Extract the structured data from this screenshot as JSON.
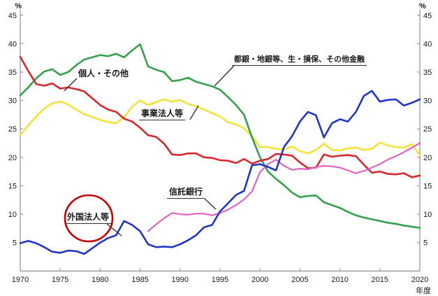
{
  "chart_data": {
    "type": "line",
    "title": "",
    "x_axis_unit_label": "年度",
    "y_axis_unit_label": "%",
    "ylim": [
      0,
      45
    ],
    "grid": false,
    "x_ticks": [
      1970,
      1975,
      1980,
      1985,
      1990,
      1995,
      2000,
      2005,
      2010,
      2015,
      2020
    ],
    "y_ticks": [
      5,
      10,
      15,
      20,
      25,
      30,
      35,
      40,
      45
    ],
    "years": [
      1970,
      1971,
      1972,
      1973,
      1974,
      1975,
      1976,
      1977,
      1978,
      1979,
      1980,
      1981,
      1982,
      1983,
      1984,
      1985,
      1986,
      1987,
      1988,
      1989,
      1990,
      1991,
      1992,
      1993,
      1994,
      1995,
      1996,
      1997,
      1998,
      1999,
      2000,
      2001,
      2002,
      2003,
      2004,
      2005,
      2006,
      2007,
      2008,
      2009,
      2010,
      2011,
      2012,
      2013,
      2014,
      2015,
      2016,
      2017,
      2018,
      2019,
      2020
    ],
    "series": [
      {
        "id": "banks-insurers-other-financial",
        "label": "都銀・地銀等、生・損保、その他金融",
        "color": "#35a04e",
        "values": [
          30.9,
          32.3,
          33.9,
          35.1,
          35.5,
          34.5,
          35.0,
          36.2,
          37.2,
          37.6,
          38.0,
          37.8,
          38.2,
          37.6,
          38.8,
          39.9,
          36.0,
          35.4,
          35.0,
          33.4,
          33.6,
          34.0,
          33.3,
          32.9,
          32.5,
          31.9,
          30.6,
          29.2,
          27.5,
          23.5,
          20.0,
          17.5,
          16.2,
          15.1,
          13.8,
          13.0,
          13.2,
          13.3,
          12.1,
          11.6,
          11.1,
          10.4,
          9.8,
          9.4,
          9.1,
          8.8,
          8.5,
          8.3,
          8.0,
          7.8,
          7.6
        ]
      },
      {
        "id": "individuals-others",
        "label": "個人・その他",
        "color": "#d7282d",
        "values": [
          37.7,
          35.2,
          32.9,
          32.6,
          33.0,
          32.1,
          32.3,
          32.0,
          31.6,
          30.4,
          29.2,
          28.4,
          28.0,
          26.8,
          26.3,
          25.2,
          23.9,
          23.6,
          22.4,
          20.5,
          20.4,
          20.7,
          20.7,
          20.0,
          19.9,
          19.5,
          19.4,
          19.0,
          19.7,
          18.9,
          19.4,
          19.7,
          20.6,
          20.5,
          20.3,
          19.1,
          18.1,
          18.2,
          20.5,
          20.1,
          20.3,
          20.4,
          20.2,
          18.7,
          17.3,
          17.5,
          17.1,
          17.0,
          17.2,
          16.5,
          16.8
        ]
      },
      {
        "id": "business-corporations",
        "label": "事業法人等",
        "color": "#f2e437",
        "values": [
          23.9,
          25.6,
          27.2,
          28.6,
          29.5,
          29.8,
          29.3,
          28.4,
          27.6,
          27.1,
          26.6,
          26.2,
          26.0,
          27.1,
          28.9,
          30.0,
          29.2,
          29.7,
          30.2,
          29.8,
          30.1,
          29.4,
          29.0,
          28.4,
          27.8,
          27.2,
          26.2,
          25.8,
          25.1,
          23.7,
          21.8,
          21.8,
          21.5,
          21.4,
          21.9,
          21.1,
          20.7,
          21.3,
          22.4,
          21.3,
          21.2,
          21.6,
          21.7,
          21.3,
          21.5,
          22.6,
          22.1,
          21.8,
          21.7,
          22.3,
          20.4
        ]
      },
      {
        "id": "trust-banks",
        "label": "信託銀行",
        "color": "#e063c2",
        "values": [
          null,
          null,
          null,
          null,
          null,
          null,
          null,
          null,
          null,
          null,
          null,
          null,
          null,
          null,
          null,
          null,
          7.0,
          8.2,
          9.3,
          10.2,
          10.0,
          9.9,
          10.1,
          10.1,
          9.8,
          10.2,
          10.8,
          11.6,
          12.6,
          14.0,
          17.4,
          18.8,
          19.6,
          18.5,
          17.8,
          18.0,
          17.9,
          18.3,
          18.5,
          18.4,
          18.2,
          17.7,
          17.2,
          17.6,
          18.2,
          18.8,
          19.6,
          20.2,
          20.9,
          21.7,
          22.5
        ]
      },
      {
        "id": "foreign-corporations",
        "label": "外国法人等",
        "color": "#2135c8",
        "values": [
          4.9,
          5.3,
          4.9,
          4.2,
          3.4,
          3.2,
          3.6,
          3.5,
          3.0,
          4.0,
          5.0,
          5.8,
          6.3,
          8.8,
          8.1,
          7.0,
          4.7,
          4.2,
          4.3,
          4.2,
          4.7,
          5.4,
          6.3,
          7.7,
          8.1,
          10.5,
          11.9,
          13.4,
          14.1,
          18.6,
          18.8,
          18.3,
          17.7,
          21.8,
          23.7,
          26.3,
          28.0,
          27.4,
          23.5,
          26.0,
          26.7,
          26.3,
          28.0,
          30.8,
          31.7,
          29.8,
          30.1,
          30.2,
          29.1,
          29.6,
          30.2
        ]
      }
    ],
    "annotation_circle_color": "#cc0000",
    "axis_color": "#999999",
    "tick_label_color": "#1a1a1a"
  }
}
